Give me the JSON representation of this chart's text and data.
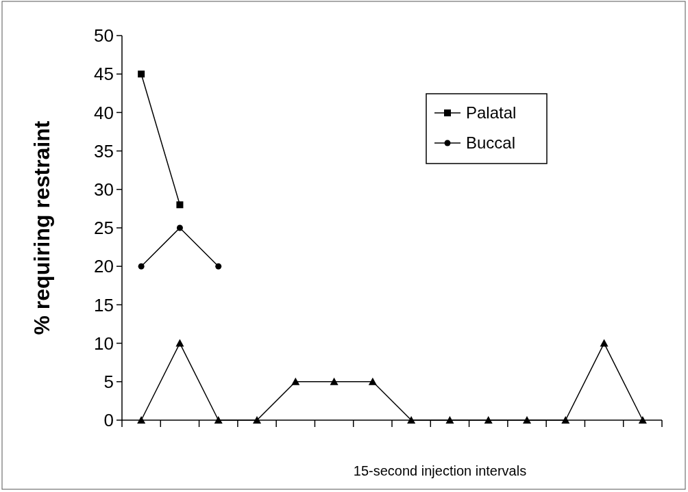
{
  "chart_data": {
    "type": "line",
    "xlabel": "15-second injection intervals",
    "ylabel": "% requiring restraint",
    "categories": [
      null,
      null,
      null,
      null,
      null,
      null,
      null,
      null,
      null,
      null,
      null,
      null,
      null,
      null
    ],
    "ylim": [
      0,
      50
    ],
    "yticks": [
      0,
      5,
      10,
      15,
      20,
      25,
      30,
      35,
      40,
      45,
      50
    ],
    "tick_labels": "y",
    "grid": false,
    "legend": "top right",
    "series": [
      {
        "name": "Palatal",
        "color": "#000000",
        "marker": "square",
        "values": [
          45,
          28,
          null,
          null,
          null,
          null,
          null,
          null,
          null,
          null,
          null,
          null,
          null,
          null
        ]
      },
      {
        "name": "Buccal",
        "color": "#000000",
        "marker": "circle",
        "values": [
          20,
          25,
          20,
          null,
          null,
          null,
          null,
          null,
          null,
          null,
          null,
          null,
          null,
          null
        ]
      },
      {
        "color": "#000000",
        "marker": "triangle",
        "values": [
          0,
          10,
          0,
          0,
          5,
          5,
          5,
          0,
          0,
          0,
          0,
          0,
          10,
          0
        ]
      }
    ]
  }
}
